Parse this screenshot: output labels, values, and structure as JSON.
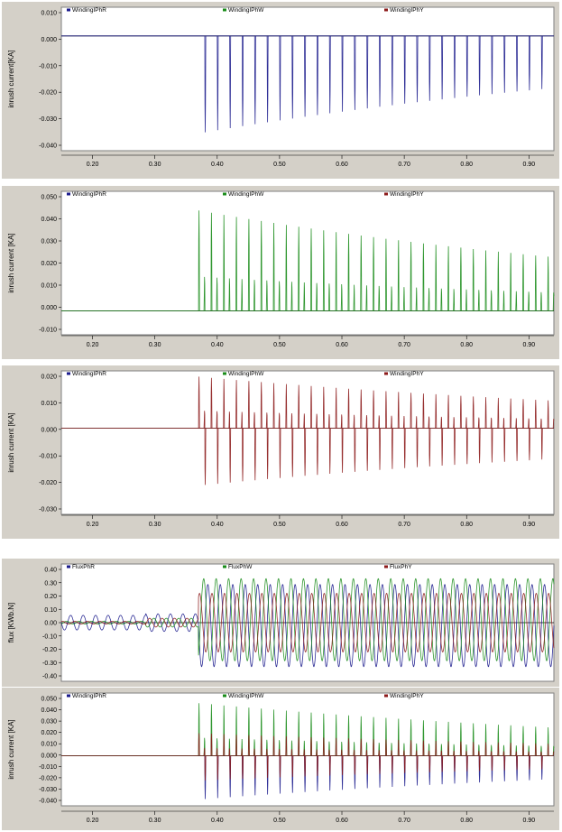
{
  "chart_data": [
    {
      "type": "line",
      "ylabel": "inrush current[KA]",
      "xlim": [
        0.15,
        0.94
      ],
      "ylim": [
        -0.04,
        0.01
      ],
      "yticks": [
        "0.010",
        "0.000",
        "-0.010",
        "-0.020",
        "-0.030",
        "-0.040"
      ],
      "xticks": [
        "0.20",
        "0.30",
        "0.40",
        "0.50",
        "0.60",
        "0.70",
        "0.80",
        "0.90"
      ],
      "series": [
        {
          "name": "WindingIPhR",
          "color": "#1a1a8c",
          "visible": true,
          "peaks": [
            [
              0.37,
              -0.034
            ],
            [
              0.94,
              -0.016
            ]
          ]
        },
        {
          "name": "WindingIPhW",
          "color": "#1a8c1a",
          "visible": false,
          "peaks": []
        },
        {
          "name": "WindingIPhY",
          "color": "#8c1a1a",
          "visible": false,
          "peaks": []
        }
      ]
    },
    {
      "type": "line",
      "ylabel": "inrush current [KA]",
      "xlim": [
        0.15,
        0.94
      ],
      "ylim": [
        -0.01,
        0.05
      ],
      "yticks": [
        "0.050",
        "0.040",
        "0.030",
        "0.020",
        "0.010",
        "0.000",
        "-0.010"
      ],
      "xticks": [
        "0.20",
        "0.30",
        "0.40",
        "0.50",
        "0.60",
        "0.70",
        "0.80",
        "0.90"
      ],
      "series": [
        {
          "name": "WindingIPhR",
          "color": "#1a1a8c",
          "visible": false,
          "peaks": []
        },
        {
          "name": "WindingIPhW",
          "color": "#1a8c1a",
          "visible": true,
          "peaks": [
            [
              0.38,
              0.042
            ],
            [
              0.94,
              0.023
            ]
          ]
        },
        {
          "name": "WindingIPhY",
          "color": "#8c1a1a",
          "visible": false,
          "peaks": []
        }
      ]
    },
    {
      "type": "line",
      "ylabel": "inrush current [KA]",
      "xlim": [
        0.15,
        0.94
      ],
      "ylim": [
        -0.03,
        0.02
      ],
      "yticks": [
        "0.020",
        "0.010",
        "0.000",
        "-0.010",
        "-0.020",
        "-0.030"
      ],
      "xticks": [
        "0.20",
        "0.30",
        "0.40",
        "0.50",
        "0.60",
        "0.70",
        "0.80",
        "0.90"
      ],
      "series": [
        {
          "name": "WindingIPhR",
          "color": "#1a1a8c",
          "visible": false,
          "peaks": []
        },
        {
          "name": "WindingIPhW",
          "color": "#1a8c1a",
          "visible": false,
          "peaks": []
        },
        {
          "name": "WindingIPhY",
          "color": "#8c1a1a",
          "visible": true,
          "peaks": [
            [
              0.37,
              0.018
            ],
            [
              0.37,
              -0.02
            ],
            [
              0.94,
              0.01
            ],
            [
              0.94,
              -0.012
            ]
          ]
        }
      ]
    },
    {
      "type": "line",
      "ylabel": "flux [KWb.N]",
      "xlim": [
        0.15,
        0.94
      ],
      "ylim": [
        -0.4,
        0.4
      ],
      "yticks": [
        "0.40",
        "0.30",
        "0.20",
        "0.10",
        "0.00",
        "-0.10",
        "-0.20",
        "-0.30",
        "-0.40"
      ],
      "xticks": [],
      "series": [
        {
          "name": "FluxPhR",
          "color": "#1a1a8c",
          "visible": true,
          "peaks": [
            [
              0.2,
              0.05
            ],
            [
              0.37,
              -0.3
            ],
            [
              0.94,
              -0.3
            ]
          ]
        },
        {
          "name": "FluxPhW",
          "color": "#1a8c1a",
          "visible": true,
          "peaks": [
            [
              0.37,
              0.3
            ],
            [
              0.94,
              0.3
            ]
          ]
        },
        {
          "name": "FluxPhY",
          "color": "#8c1a1a",
          "visible": true,
          "peaks": [
            [
              0.37,
              0.2
            ],
            [
              0.94,
              0.2
            ]
          ]
        }
      ]
    },
    {
      "type": "line",
      "ylabel": "inrush current [KA]",
      "xlim": [
        0.15,
        0.94
      ],
      "ylim": [
        -0.04,
        0.05
      ],
      "yticks": [
        "0.050",
        "0.040",
        "0.030",
        "0.020",
        "0.010",
        "0.000",
        "-0.010",
        "-0.020",
        "-0.030",
        "-0.040"
      ],
      "xticks": [
        "0.20",
        "0.30",
        "0.40",
        "0.50",
        "0.60",
        "0.70",
        "0.80",
        "0.90"
      ],
      "series": [
        {
          "name": "WindingIPhR",
          "color": "#1a1a8c",
          "visible": true,
          "peaks": [
            [
              0.37,
              -0.035
            ],
            [
              0.94,
              -0.016
            ]
          ]
        },
        {
          "name": "WindingIPhW",
          "color": "#1a8c1a",
          "visible": true,
          "peaks": [
            [
              0.38,
              0.042
            ],
            [
              0.94,
              0.022
            ]
          ]
        },
        {
          "name": "WindingIPhY",
          "color": "#8c1a1a",
          "visible": true,
          "peaks": [
            [
              0.37,
              0.018
            ],
            [
              0.37,
              -0.02
            ],
            [
              0.94,
              0.01
            ],
            [
              0.94,
              -0.012
            ]
          ]
        }
      ]
    }
  ]
}
